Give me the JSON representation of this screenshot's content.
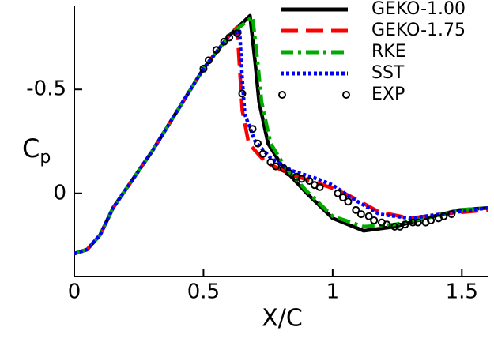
{
  "chart_data": {
    "type": "line",
    "xlabel": "X/C",
    "ylabel_main": "C",
    "ylabel_sub": "p",
    "xlim": [
      0,
      1.6
    ],
    "ylim": [
      0.4,
      -0.9
    ],
    "xticks": [
      0,
      0.5,
      1,
      1.5
    ],
    "yticks": [
      -0.5,
      0
    ],
    "series": [
      {
        "name": "GEKO-1.00",
        "color": "#000000",
        "dash": "solid",
        "x": [
          0,
          0.05,
          0.1,
          0.15,
          0.2,
          0.3,
          0.4,
          0.5,
          0.6,
          0.68,
          0.7,
          0.715,
          0.75,
          0.81,
          0.9,
          1.0,
          1.12,
          1.24,
          1.36,
          1.49,
          1.6
        ],
        "values": [
          0.29,
          0.27,
          0.2,
          0.07,
          -0.02,
          -0.2,
          -0.4,
          -0.6,
          -0.76,
          -0.855,
          -0.63,
          -0.44,
          -0.24,
          -0.12,
          0.0,
          0.12,
          0.18,
          0.16,
          0.12,
          0.08,
          0.07
        ]
      },
      {
        "name": "GEKO-1.75",
        "color": "#ff0000",
        "dash": "dashed",
        "x": [
          0,
          0.05,
          0.1,
          0.15,
          0.2,
          0.3,
          0.4,
          0.5,
          0.6,
          0.63,
          0.64,
          0.65,
          0.675,
          0.74,
          0.84,
          0.94,
          1.01,
          1.07,
          1.18,
          1.3,
          1.42,
          1.6
        ],
        "values": [
          0.29,
          0.27,
          0.2,
          0.07,
          -0.02,
          -0.2,
          -0.4,
          -0.6,
          -0.76,
          -0.8,
          -0.6,
          -0.4,
          -0.24,
          -0.15,
          -0.09,
          -0.05,
          -0.02,
          0.015,
          0.09,
          0.12,
          0.1,
          0.08
        ]
      },
      {
        "name": "RKE",
        "color": "#00aa00",
        "dash": "dashdot",
        "x": [
          0,
          0.05,
          0.1,
          0.15,
          0.2,
          0.3,
          0.4,
          0.5,
          0.6,
          0.69,
          0.71,
          0.725,
          0.76,
          0.82,
          0.9,
          1.0,
          1.12,
          1.24,
          1.36,
          1.49,
          1.6
        ],
        "values": [
          0.29,
          0.27,
          0.2,
          0.07,
          -0.02,
          -0.2,
          -0.4,
          -0.6,
          -0.76,
          -0.85,
          -0.63,
          -0.44,
          -0.24,
          -0.12,
          -0.01,
          0.11,
          0.16,
          0.15,
          0.12,
          0.08,
          0.07
        ]
      },
      {
        "name": "SST",
        "color": "#0000ff",
        "dash": "dotted",
        "x": [
          0,
          0.05,
          0.1,
          0.15,
          0.2,
          0.3,
          0.4,
          0.5,
          0.6,
          0.64,
          0.65,
          0.66,
          0.7,
          0.76,
          0.84,
          0.94,
          1.0,
          1.07,
          1.18,
          1.3,
          1.42,
          1.6
        ],
        "values": [
          0.29,
          0.27,
          0.2,
          0.07,
          -0.02,
          -0.2,
          -0.4,
          -0.6,
          -0.76,
          -0.78,
          -0.55,
          -0.38,
          -0.25,
          -0.17,
          -0.11,
          -0.07,
          -0.04,
          0.02,
          0.1,
          0.12,
          0.1,
          0.07
        ]
      },
      {
        "name": "EXP",
        "color": "#000000",
        "marker": "circle",
        "x": [
          0.5,
          0.52,
          0.55,
          0.58,
          0.6,
          0.63,
          0.65,
          0.69,
          0.71,
          0.73,
          0.76,
          0.78,
          0.81,
          0.83,
          0.86,
          0.88,
          0.91,
          0.93,
          0.95,
          1.02,
          1.04,
          1.06,
          1.09,
          1.11,
          1.14,
          1.16,
          1.19,
          1.21,
          1.24,
          1.26,
          1.28,
          1.31,
          1.33,
          1.36,
          1.38,
          1.41,
          1.43,
          1.46
        ],
        "values": [
          -0.6,
          -0.64,
          -0.69,
          -0.73,
          -0.75,
          -0.77,
          -0.48,
          -0.31,
          -0.24,
          -0.19,
          -0.15,
          -0.13,
          -0.12,
          -0.1,
          -0.08,
          -0.07,
          -0.06,
          -0.04,
          -0.03,
          0.0,
          0.02,
          0.04,
          0.08,
          0.1,
          0.11,
          0.13,
          0.14,
          0.15,
          0.16,
          0.16,
          0.15,
          0.14,
          0.14,
          0.14,
          0.13,
          0.12,
          0.11,
          0.1
        ]
      }
    ]
  }
}
